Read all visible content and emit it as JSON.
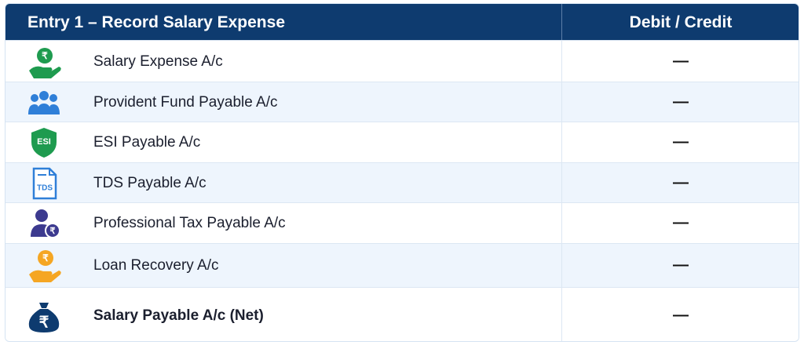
{
  "header": {
    "title": "Entry 1 – Record Salary Expense",
    "column_2": "Debit / Credit"
  },
  "table": {
    "rows": [
      {
        "icon_label": "₹",
        "account": "Salary Expense A/c",
        "debit_credit": "—"
      },
      {
        "account": "Provident Fund Payable A/c",
        "debit_credit": "—"
      },
      {
        "icon_label": "ESI",
        "account": "ESI Payable A/c",
        "debit_credit": "—"
      },
      {
        "icon_label": "TDS",
        "account": "TDS Payable A/c",
        "debit_credit": "—"
      },
      {
        "icon_label": "₹",
        "account": "Professional Tax Payable A/c",
        "debit_credit": "—"
      },
      {
        "icon_label": "₹",
        "account": "Loan Recovery A/c",
        "debit_credit": "—"
      },
      {
        "icon_label": "₹",
        "account": "Salary Payable A/c (Net)",
        "debit_credit": "—"
      }
    ]
  }
}
